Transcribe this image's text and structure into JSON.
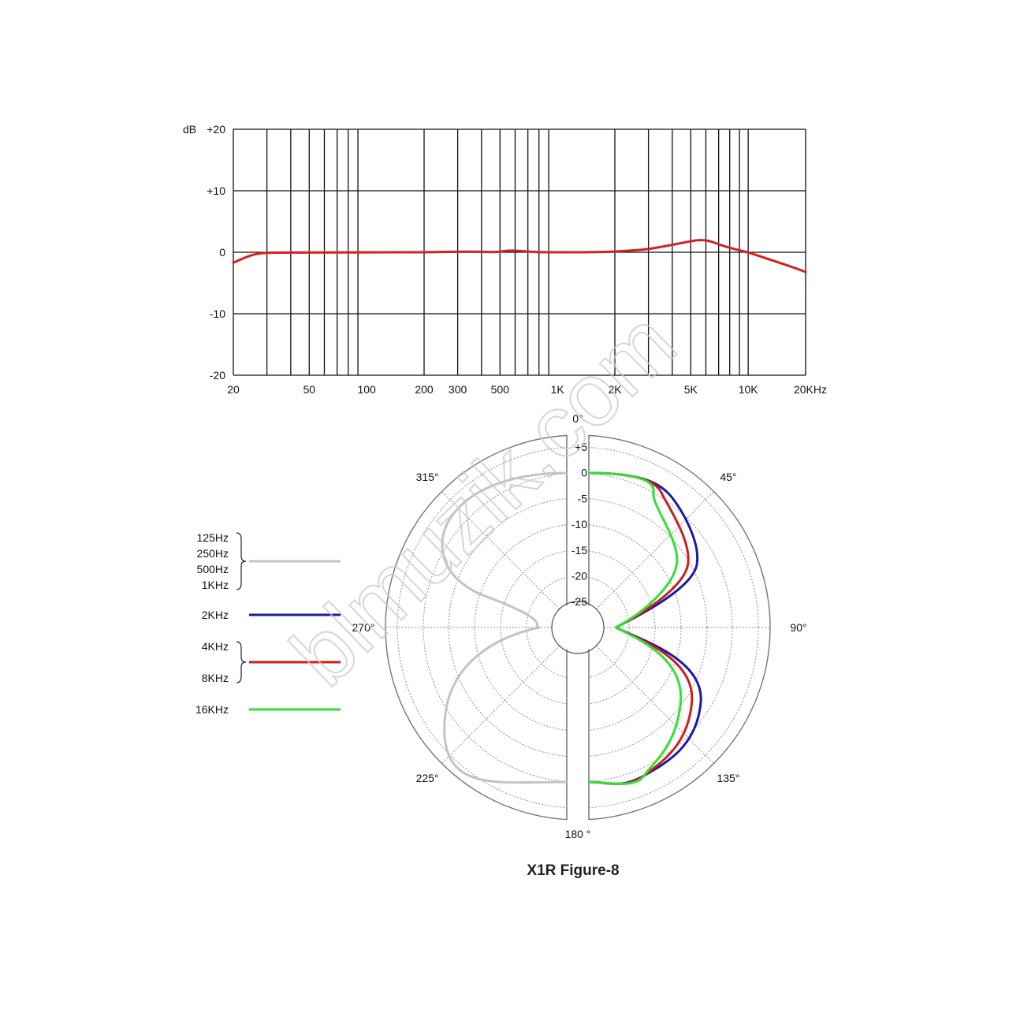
{
  "watermark": "blmuzik.com",
  "chart_data": [
    {
      "type": "line",
      "ylabel": "dB",
      "xlabel": "",
      "x_scale": "log",
      "xlim": [
        20,
        20000
      ],
      "ylim": [
        -20,
        20
      ],
      "y_ticks": [
        {
          "value": 20,
          "label": "+20"
        },
        {
          "value": 10,
          "label": "+10"
        },
        {
          "value": 0,
          "label": "0"
        },
        {
          "value": -10,
          "label": "-10"
        },
        {
          "value": -20,
          "label": "-20"
        }
      ],
      "x_ticks": [
        {
          "value": 20,
          "label": "20"
        },
        {
          "value": 50,
          "label": "50"
        },
        {
          "value": 100,
          "label": "100"
        },
        {
          "value": 200,
          "label": "200"
        },
        {
          "value": 300,
          "label": "300"
        },
        {
          "value": 500,
          "label": "500"
        },
        {
          "value": 1000,
          "label": "1K"
        },
        {
          "value": 2000,
          "label": "2K"
        },
        {
          "value": 5000,
          "label": "5K"
        },
        {
          "value": 10000,
          "label": "10K"
        },
        {
          "value": 20000,
          "label": "20KHz"
        }
      ],
      "grid": true,
      "series": [
        {
          "color": "#d42020",
          "points": [
            [
              20,
              -1.7
            ],
            [
              24,
              -0.6
            ],
            [
              28,
              -0.1
            ],
            [
              35,
              -0.05
            ],
            [
              50,
              -0.05
            ],
            [
              100,
              0
            ],
            [
              200,
              0
            ],
            [
              300,
              0.1
            ],
            [
              400,
              0.1
            ],
            [
              480,
              0.0
            ],
            [
              550,
              0.3
            ],
            [
              650,
              0.2
            ],
            [
              800,
              0
            ],
            [
              1000,
              0
            ],
            [
              1500,
              0
            ],
            [
              2000,
              0.1
            ],
            [
              2500,
              0.3
            ],
            [
              3000,
              0.5
            ],
            [
              4000,
              1.2
            ],
            [
              5000,
              1.8
            ],
            [
              5500,
              2.0
            ],
            [
              6200,
              1.9
            ],
            [
              7000,
              1.3
            ],
            [
              8000,
              0.7
            ],
            [
              10000,
              0
            ],
            [
              13000,
              -1.2
            ],
            [
              16000,
              -2.1
            ],
            [
              20000,
              -3.2
            ]
          ]
        }
      ]
    },
    {
      "type": "polar",
      "title": "X1R Figure-8",
      "r_labels": [
        "+5",
        "0",
        "-5",
        "-10",
        "-15",
        "-20",
        "-25"
      ],
      "angle_labels": [
        {
          "angle": 0,
          "label": "0°"
        },
        {
          "angle": 45,
          "label": "45°"
        },
        {
          "angle": 90,
          "label": "90°"
        },
        {
          "angle": 135,
          "label": "135°"
        },
        {
          "angle": 180,
          "label": "180 °"
        },
        {
          "angle": 225,
          "label": "225°"
        },
        {
          "angle": 270,
          "label": "270°"
        },
        {
          "angle": 315,
          "label": "315°"
        }
      ],
      "legend": [
        {
          "labels": [
            "125Hz",
            "250Hz",
            "500Hz",
            "1KHz"
          ],
          "color": "#c3c3c3",
          "bracket": true
        },
        {
          "labels": [
            "2KHz"
          ],
          "color": "#1a1aa6",
          "bracket": false
        },
        {
          "labels": [
            "4KHz",
            "8KHz"
          ],
          "color": "#cc1f1f",
          "bracket": true
        },
        {
          "labels": [
            "16KHz"
          ],
          "color": "#33e033",
          "bracket": false
        }
      ],
      "series": [
        {
          "name": "125Hz / 250Hz / 500Hz / 1KHz",
          "color": "#c3c3c3",
          "side": "left",
          "width_factor": 1.0
        },
        {
          "name": "2KHz",
          "color": "#1a1aa6",
          "side": "right",
          "width_factor": 1.0
        },
        {
          "name": "4KHz / 8KHz",
          "color": "#cc1f1f",
          "side": "right",
          "width_factor": 0.92
        },
        {
          "name": "16KHz",
          "color": "#33e033",
          "side": "right",
          "width_factor": 0.82
        }
      ]
    }
  ]
}
